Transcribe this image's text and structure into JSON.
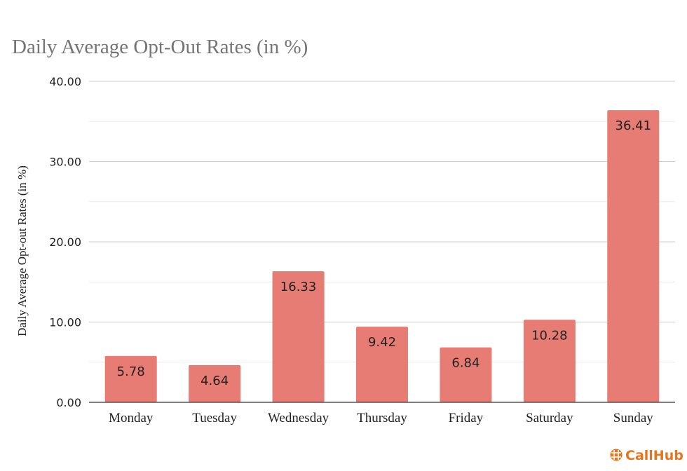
{
  "chart_data": {
    "type": "bar",
    "title": "Daily Average Opt-Out Rates (in %)",
    "xlabel": "",
    "ylabel": "Daily Average Opt-out Rates (in %)",
    "categories": [
      "Monday",
      "Tuesday",
      "Wednesday",
      "Thursday",
      "Friday",
      "Saturday",
      "Sunday"
    ],
    "values": [
      5.78,
      4.64,
      16.33,
      9.42,
      6.84,
      10.28,
      36.41
    ],
    "value_labels": [
      "5.78",
      "4.64",
      "16.33",
      "9.42",
      "6.84",
      "10.28",
      "36.41"
    ],
    "ylim": [
      0,
      40
    ],
    "yticks": [
      0,
      10,
      20,
      30,
      40
    ],
    "ytick_labels": [
      "0.00",
      "10.00",
      "20.00",
      "30.00",
      "40.00"
    ],
    "grid": true,
    "legend": "none",
    "bar_color": "#e67c73"
  },
  "brand": {
    "name": "CallHub",
    "color": "#e8741c",
    "icon": "callhub-logo-icon"
  }
}
